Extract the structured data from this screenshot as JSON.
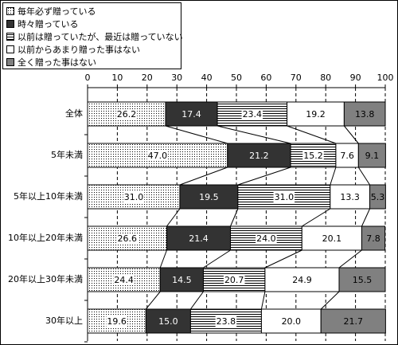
{
  "chart_data": {
    "type": "stacked-bar-horizontal",
    "categories": [
      "全体",
      "5年未満",
      "5年以上10年未満",
      "10年以上20年未満",
      "20年以上30年未満",
      "30年以上"
    ],
    "series": [
      {
        "name": "毎年必ず贈っている",
        "color": "#ffffff",
        "pattern": "dots",
        "values": [
          26.2,
          47.0,
          31.0,
          26.6,
          24.4,
          19.6
        ],
        "value_labels": [
          "26.2",
          "47.0",
          "31.0",
          "26.6",
          "24.4",
          "19.6"
        ]
      },
      {
        "name": "時々贈っている",
        "color": "#333333",
        "pattern": "solid",
        "values": [
          17.4,
          21.2,
          19.5,
          21.4,
          14.5,
          15.0
        ],
        "value_labels": [
          "17.4",
          "21.2",
          "19.5",
          "21.4",
          "14.5",
          "15.0"
        ]
      },
      {
        "name": "以前は贈っていたが、最近は贈っていない",
        "color": "#ffffff",
        "pattern": "hlines",
        "values": [
          23.4,
          15.2,
          31.0,
          24.0,
          20.7,
          23.8
        ],
        "value_labels": [
          "23.4",
          "15.2",
          "31.0",
          "24.0",
          "20.7",
          "23.8"
        ]
      },
      {
        "name": "以前からあまり贈った事はない",
        "color": "#ffffff",
        "pattern": "solid",
        "values": [
          19.2,
          7.6,
          13.3,
          20.1,
          24.9,
          20.0
        ],
        "value_labels": [
          "19.2",
          "7.6",
          "13.3",
          "20.1",
          "24.9",
          "20.0"
        ]
      },
      {
        "name": "全く贈った事はない",
        "color": "#808080",
        "pattern": "solid",
        "values": [
          13.8,
          9.1,
          5.3,
          7.8,
          15.5,
          21.7
        ],
        "value_labels": [
          "13.8",
          "9.1",
          "5.3",
          "7.8",
          "15.5",
          "21.7"
        ]
      }
    ],
    "xlim": [
      0,
      100
    ],
    "xticks": [
      0,
      10,
      20,
      30,
      40,
      50,
      60,
      70,
      80,
      90,
      100
    ],
    "grid": true,
    "legend": "top-left"
  }
}
